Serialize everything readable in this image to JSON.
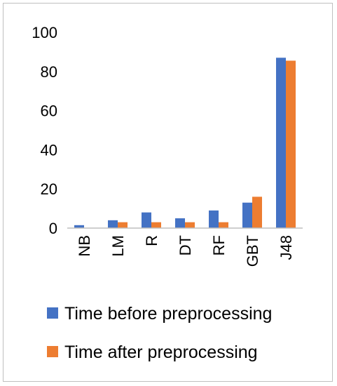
{
  "chart_data": {
    "type": "bar",
    "title": "",
    "xlabel": "",
    "ylabel": "",
    "ylim": [
      0,
      100
    ],
    "yticks": [
      0,
      20,
      40,
      60,
      80,
      100
    ],
    "grid": false,
    "legend_position": "bottom",
    "categories": [
      "NB",
      "LM",
      "R",
      "DT",
      "RF",
      "GBT",
      "J48"
    ],
    "series": [
      {
        "name": "Time before preprocessing",
        "color": "#4472c4",
        "values": [
          1.5,
          4,
          8,
          5,
          9,
          13,
          87
        ]
      },
      {
        "name": "Time after preprocessing",
        "color": "#ed7d31",
        "values": [
          0,
          3,
          3,
          3,
          3,
          16,
          85.5
        ]
      }
    ]
  }
}
